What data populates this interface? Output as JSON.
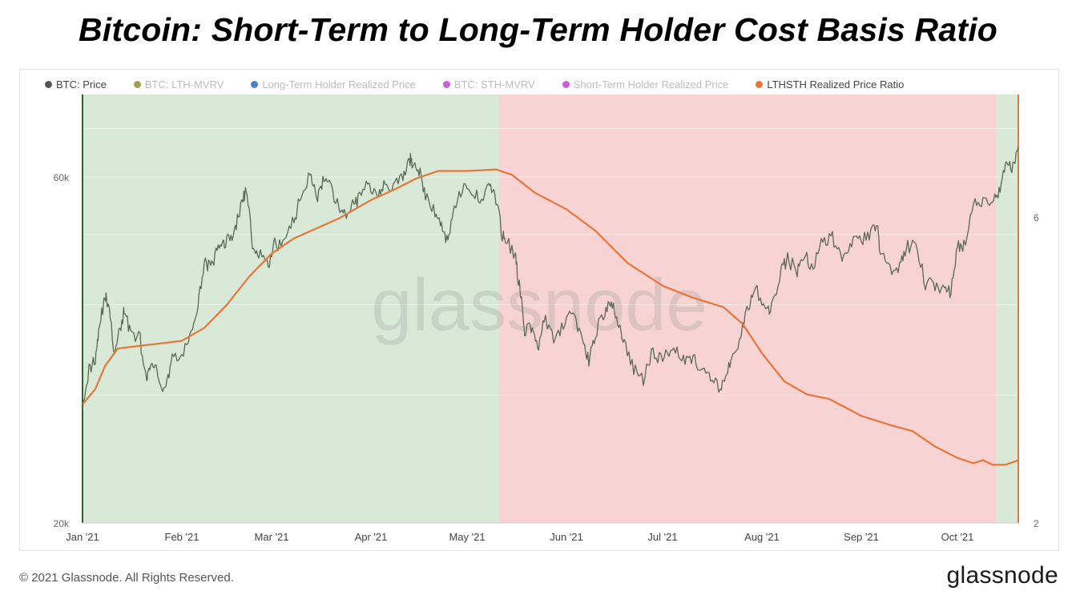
{
  "title": "Bitcoin: Short-Term to Long-Term Holder Cost Basis Ratio",
  "legend": [
    {
      "label": "BTC: Price",
      "color": "#555555",
      "active": true
    },
    {
      "label": "BTC: LTH-MVRV",
      "color": "#a4a04a",
      "active": false
    },
    {
      "label": "Long-Term Holder Realized Price",
      "color": "#4a7fd6",
      "active": false
    },
    {
      "label": "BTC: STH-MVRV",
      "color": "#c85ed8",
      "active": false
    },
    {
      "label": "Short-Term Holder Realized Price",
      "color": "#c85ed8",
      "active": false
    },
    {
      "label": "LTHSTH Realized Price Ratio",
      "color": "#e8763a",
      "active": true
    }
  ],
  "watermark": "glassnode",
  "footer": "© 2021 Glassnode. All Rights Reserved.",
  "logo": "glassnode",
  "chart_data": {
    "type": "line",
    "x_ticks": [
      "Jan '21",
      "Feb '21",
      "Mar '21",
      "Apr '21",
      "May '21",
      "Jun '21",
      "Jul '21",
      "Aug '21",
      "Sep '21",
      "Oct '21"
    ],
    "x_range": [
      "2021-01-01",
      "2021-10-20"
    ],
    "y_left": {
      "ticks": [
        "20k",
        "60k"
      ],
      "scale": "log",
      "range": [
        20000,
        78000
      ]
    },
    "y_right": {
      "ticks": [
        "2",
        "6"
      ],
      "scale": "linear",
      "range": [
        2,
        7.6
      ]
    },
    "background_regions": [
      {
        "from": "2021-01-01",
        "to": "2021-05-11",
        "color": "#d9e9d7"
      },
      {
        "from": "2021-05-11",
        "to": "2021-10-13",
        "color": "#f8d3d3"
      },
      {
        "from": "2021-10-13",
        "to": "2021-10-20",
        "color": "#d9e9d7"
      }
    ],
    "series": [
      {
        "name": "BTC: Price",
        "axis": "left",
        "color": "#5a6a52",
        "points": [
          [
            "2021-01-01",
            29300
          ],
          [
            "2021-01-03",
            32500
          ],
          [
            "2021-01-05",
            33800
          ],
          [
            "2021-01-06",
            36800
          ],
          [
            "2021-01-08",
            41000
          ],
          [
            "2021-01-09",
            40200
          ],
          [
            "2021-01-11",
            34000
          ],
          [
            "2021-01-13",
            37400
          ],
          [
            "2021-01-14",
            39200
          ],
          [
            "2021-01-16",
            36800
          ],
          [
            "2021-01-19",
            35800
          ],
          [
            "2021-01-21",
            31000
          ],
          [
            "2021-01-22",
            33000
          ],
          [
            "2021-01-24",
            32300
          ],
          [
            "2021-01-27",
            30400
          ],
          [
            "2021-01-29",
            34300
          ],
          [
            "2021-02-01",
            33500
          ],
          [
            "2021-02-04",
            37000
          ],
          [
            "2021-02-06",
            39300
          ],
          [
            "2021-02-08",
            46200
          ],
          [
            "2021-02-10",
            44800
          ],
          [
            "2021-02-12",
            47400
          ],
          [
            "2021-02-14",
            48800
          ],
          [
            "2021-02-16",
            49200
          ],
          [
            "2021-02-18",
            51600
          ],
          [
            "2021-02-20",
            55900
          ],
          [
            "2021-02-21",
            57500
          ],
          [
            "2021-02-23",
            48900
          ],
          [
            "2021-02-25",
            47100
          ],
          [
            "2021-02-28",
            45200
          ],
          [
            "2021-03-02",
            48400
          ],
          [
            "2021-03-05",
            48800
          ],
          [
            "2021-03-08",
            52400
          ],
          [
            "2021-03-10",
            56000
          ],
          [
            "2021-03-13",
            61200
          ],
          [
            "2021-03-15",
            56000
          ],
          [
            "2021-03-17",
            58900
          ],
          [
            "2021-03-19",
            58300
          ],
          [
            "2021-03-22",
            54500
          ],
          [
            "2021-03-24",
            52800
          ],
          [
            "2021-03-26",
            55000
          ],
          [
            "2021-03-28",
            55800
          ],
          [
            "2021-03-31",
            58800
          ],
          [
            "2021-04-03",
            57100
          ],
          [
            "2021-04-05",
            58800
          ],
          [
            "2021-04-08",
            58000
          ],
          [
            "2021-04-11",
            59900
          ],
          [
            "2021-04-13",
            63500
          ],
          [
            "2021-04-14",
            62900
          ],
          [
            "2021-04-16",
            61300
          ],
          [
            "2021-04-18",
            56300
          ],
          [
            "2021-04-21",
            53800
          ],
          [
            "2021-04-23",
            51300
          ],
          [
            "2021-04-25",
            49000
          ],
          [
            "2021-04-27",
            55000
          ],
          [
            "2021-04-30",
            57800
          ],
          [
            "2021-05-03",
            56600
          ],
          [
            "2021-05-06",
            56400
          ],
          [
            "2021-05-08",
            58900
          ],
          [
            "2021-05-10",
            55800
          ],
          [
            "2021-05-12",
            49700
          ],
          [
            "2021-05-13",
            49600
          ],
          [
            "2021-05-16",
            46500
          ],
          [
            "2021-05-17",
            43500
          ],
          [
            "2021-05-19",
            36900
          ],
          [
            "2021-05-21",
            37300
          ],
          [
            "2021-05-23",
            34700
          ],
          [
            "2021-05-25",
            38300
          ],
          [
            "2021-05-28",
            35600
          ],
          [
            "2021-05-31",
            37300
          ],
          [
            "2021-06-03",
            39200
          ],
          [
            "2021-06-06",
            35800
          ],
          [
            "2021-06-08",
            33400
          ],
          [
            "2021-06-10",
            36700
          ],
          [
            "2021-06-13",
            39100
          ],
          [
            "2021-06-15",
            40200
          ],
          [
            "2021-06-17",
            38100
          ],
          [
            "2021-06-19",
            35500
          ],
          [
            "2021-06-22",
            32500
          ],
          [
            "2021-06-25",
            31600
          ],
          [
            "2021-06-28",
            34500
          ],
          [
            "2021-07-01",
            33500
          ],
          [
            "2021-07-04",
            35300
          ],
          [
            "2021-07-07",
            33800
          ],
          [
            "2021-07-10",
            33800
          ],
          [
            "2021-07-13",
            32700
          ],
          [
            "2021-07-16",
            31400
          ],
          [
            "2021-07-19",
            30800
          ],
          [
            "2021-07-21",
            32100
          ],
          [
            "2021-07-23",
            33600
          ],
          [
            "2021-07-26",
            37300
          ],
          [
            "2021-07-28",
            40000
          ],
          [
            "2021-07-30",
            42200
          ],
          [
            "2021-08-02",
            39200
          ],
          [
            "2021-08-04",
            39700
          ],
          [
            "2021-08-07",
            44600
          ],
          [
            "2021-08-09",
            46300
          ],
          [
            "2021-08-12",
            44400
          ],
          [
            "2021-08-14",
            47100
          ],
          [
            "2021-08-17",
            44800
          ],
          [
            "2021-08-20",
            49300
          ],
          [
            "2021-08-23",
            49500
          ],
          [
            "2021-08-26",
            46800
          ],
          [
            "2021-08-29",
            48800
          ],
          [
            "2021-09-01",
            48900
          ],
          [
            "2021-09-04",
            50000
          ],
          [
            "2021-09-06",
            51800
          ],
          [
            "2021-09-07",
            46800
          ],
          [
            "2021-09-10",
            44900
          ],
          [
            "2021-09-13",
            44900
          ],
          [
            "2021-09-15",
            48100
          ],
          [
            "2021-09-18",
            48300
          ],
          [
            "2021-09-21",
            42800
          ],
          [
            "2021-09-24",
            42700
          ],
          [
            "2021-09-27",
            42200
          ],
          [
            "2021-09-29",
            41500
          ],
          [
            "2021-10-01",
            48100
          ],
          [
            "2021-10-03",
            48200
          ],
          [
            "2021-10-06",
            55300
          ],
          [
            "2021-10-09",
            55000
          ],
          [
            "2021-10-12",
            56000
          ],
          [
            "2021-10-14",
            57400
          ],
          [
            "2021-10-16",
            61500
          ],
          [
            "2021-10-18",
            62000
          ],
          [
            "2021-10-20",
            66000
          ]
        ]
      },
      {
        "name": "LTHSTH Realized Price Ratio",
        "axis": "right",
        "color": "#e8763a",
        "points": [
          [
            "2021-01-01",
            3.55
          ],
          [
            "2021-01-05",
            3.75
          ],
          [
            "2021-01-08",
            4.05
          ],
          [
            "2021-01-12",
            4.28
          ],
          [
            "2021-01-20",
            4.32
          ],
          [
            "2021-02-01",
            4.38
          ],
          [
            "2021-02-08",
            4.55
          ],
          [
            "2021-02-15",
            4.85
          ],
          [
            "2021-02-22",
            5.22
          ],
          [
            "2021-03-01",
            5.52
          ],
          [
            "2021-03-08",
            5.72
          ],
          [
            "2021-03-15",
            5.85
          ],
          [
            "2021-03-22",
            5.98
          ],
          [
            "2021-04-01",
            6.22
          ],
          [
            "2021-04-08",
            6.35
          ],
          [
            "2021-04-15",
            6.5
          ],
          [
            "2021-04-22",
            6.6
          ],
          [
            "2021-05-01",
            6.6
          ],
          [
            "2021-05-10",
            6.62
          ],
          [
            "2021-05-15",
            6.55
          ],
          [
            "2021-05-22",
            6.32
          ],
          [
            "2021-06-01",
            6.1
          ],
          [
            "2021-06-10",
            5.82
          ],
          [
            "2021-06-20",
            5.4
          ],
          [
            "2021-07-01",
            5.1
          ],
          [
            "2021-07-10",
            4.95
          ],
          [
            "2021-07-20",
            4.82
          ],
          [
            "2021-07-26",
            4.6
          ],
          [
            "2021-08-01",
            4.22
          ],
          [
            "2021-08-08",
            3.85
          ],
          [
            "2021-08-15",
            3.68
          ],
          [
            "2021-08-22",
            3.62
          ],
          [
            "2021-09-01",
            3.4
          ],
          [
            "2021-09-10",
            3.28
          ],
          [
            "2021-09-17",
            3.2
          ],
          [
            "2021-09-24",
            3.0
          ],
          [
            "2021-10-01",
            2.85
          ],
          [
            "2021-10-06",
            2.78
          ],
          [
            "2021-10-09",
            2.82
          ],
          [
            "2021-10-12",
            2.76
          ],
          [
            "2021-10-16",
            2.76
          ],
          [
            "2021-10-20",
            2.82
          ]
        ]
      }
    ]
  }
}
